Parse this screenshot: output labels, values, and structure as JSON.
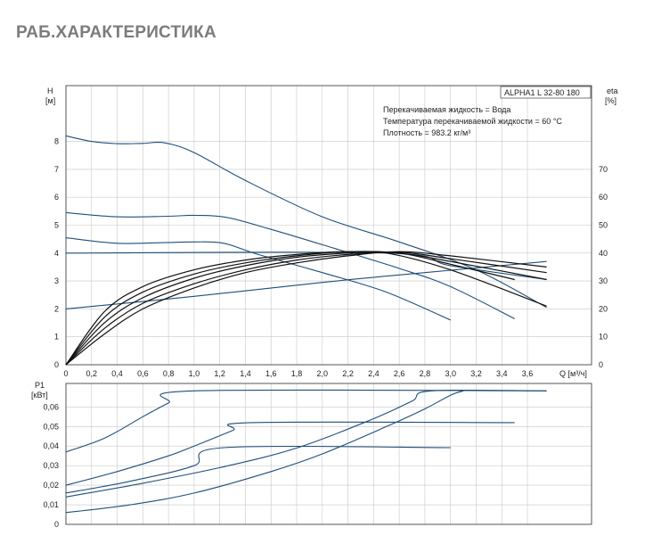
{
  "page": {
    "title": "РАБ.ХАРАКТЕРИСТИКА"
  },
  "colors": {
    "curve": "#1f4e7a",
    "eta": "#111111",
    "grid": "#c8c8c8",
    "frame": "#555555"
  },
  "info": {
    "model": "ALPHA1 L 32-80 180",
    "lines": [
      "Перекачиваемая жидкость = Вода",
      "Температура перекачиваемой жидкости = 60 °C",
      "Плотность = 983.2 кг/м³"
    ]
  },
  "chart_data": [
    {
      "type": "line",
      "xlabel": "Q [м³/ч]",
      "ylabel": "H [м]",
      "ylabel_right": "eta [%]",
      "xlim": [
        0,
        4.1
      ],
      "ylim": [
        0,
        10
      ],
      "ylim_right": [
        0,
        100
      ],
      "grid": true,
      "x_ticks": [
        "0",
        "0,2",
        "0,4",
        "0,6",
        "0,8",
        "1,0",
        "1,2",
        "1,4",
        "1,6",
        "1,8",
        "2,0",
        "2,2",
        "2,4",
        "2,6",
        "2,8",
        "3,0",
        "3,2",
        "3,4",
        "3,6"
      ],
      "y_ticks": [
        "0",
        "1",
        "2",
        "3",
        "4",
        "5",
        "6",
        "7",
        "8"
      ],
      "y_ticks_right": [
        "0",
        "10",
        "20",
        "30",
        "40",
        "50",
        "60",
        "70"
      ],
      "series": [
        {
          "role": "head",
          "points": [
            [
              0,
              8.2
            ],
            [
              0.2,
              8.0
            ],
            [
              0.4,
              7.92
            ],
            [
              0.6,
              7.93
            ],
            [
              0.77,
              7.95
            ],
            [
              1.0,
              7.6
            ],
            [
              1.4,
              6.6
            ],
            [
              2.0,
              5.3
            ],
            [
              2.6,
              4.4
            ],
            [
              3.2,
              3.4
            ],
            [
              3.75,
              2.05
            ]
          ]
        },
        {
          "role": "head",
          "points": [
            [
              0,
              5.45
            ],
            [
              0.4,
              5.3
            ],
            [
              0.8,
              5.32
            ],
            [
              1.0,
              5.35
            ],
            [
              1.25,
              5.28
            ],
            [
              1.6,
              4.85
            ],
            [
              2.0,
              4.3
            ],
            [
              2.6,
              3.45
            ],
            [
              3.0,
              2.8
            ],
            [
              3.5,
              1.65
            ]
          ]
        },
        {
          "role": "head",
          "points": [
            [
              0,
              4.55
            ],
            [
              0.4,
              4.35
            ],
            [
              0.8,
              4.38
            ],
            [
              1.0,
              4.4
            ],
            [
              1.23,
              4.35
            ],
            [
              1.5,
              3.95
            ],
            [
              2.0,
              3.3
            ],
            [
              2.5,
              2.6
            ],
            [
              3.0,
              1.6
            ]
          ]
        },
        {
          "role": "head",
          "points": [
            [
              0,
              4.0
            ],
            [
              2.5,
              4.0
            ],
            [
              3.0,
              3.55
            ],
            [
              3.75,
              3.05
            ]
          ]
        },
        {
          "role": "head",
          "points": [
            [
              0,
              2.0
            ],
            [
              1.0,
              2.45
            ],
            [
              2.0,
              2.95
            ],
            [
              2.8,
              3.3
            ],
            [
              3.75,
              3.7
            ]
          ]
        },
        {
          "role": "eta",
          "points": [
            [
              0,
              0
            ],
            [
              0.3,
              19
            ],
            [
              0.6,
              28
            ],
            [
              1.0,
              34
            ],
            [
              1.4,
              37.5
            ],
            [
              1.8,
              39.5
            ],
            [
              2.2,
              40.5
            ],
            [
              2.6,
              40
            ],
            [
              3.0,
              37
            ],
            [
              3.75,
              30.5
            ]
          ]
        },
        {
          "role": "eta",
          "points": [
            [
              0,
              0
            ],
            [
              0.3,
              17
            ],
            [
              0.6,
              26
            ],
            [
              1.0,
              32.5
            ],
            [
              1.4,
              36.5
            ],
            [
              1.8,
              39
            ],
            [
              2.2,
              40.5
            ],
            [
              2.6,
              40
            ],
            [
              3.0,
              36
            ],
            [
              3.5,
              30.5
            ]
          ]
        },
        {
          "role": "eta",
          "points": [
            [
              0,
              0
            ],
            [
              0.3,
              15
            ],
            [
              0.6,
              24
            ],
            [
              1.0,
              31
            ],
            [
              1.4,
              35.5
            ],
            [
              1.8,
              38.5
            ],
            [
              2.2,
              40
            ],
            [
              2.5,
              40
            ],
            [
              3.0,
              34
            ],
            [
              3.75,
              21
            ]
          ]
        },
        {
          "role": "eta",
          "points": [
            [
              0,
              0
            ],
            [
              0.3,
              13
            ],
            [
              0.6,
              22
            ],
            [
              1.0,
              29
            ],
            [
              1.4,
              34
            ],
            [
              1.8,
              37.5
            ],
            [
              2.2,
              39.5
            ],
            [
              2.6,
              40.3
            ],
            [
              3.0,
              38
            ],
            [
              3.75,
              33
            ]
          ]
        },
        {
          "role": "eta",
          "points": [
            [
              0,
              0
            ],
            [
              0.3,
              11
            ],
            [
              0.6,
              20
            ],
            [
              1.0,
              27.5
            ],
            [
              1.4,
              33
            ],
            [
              1.8,
              36.5
            ],
            [
              2.2,
              39
            ],
            [
              2.6,
              40.5
            ],
            [
              3.0,
              39
            ],
            [
              3.75,
              35
            ]
          ]
        }
      ]
    },
    {
      "type": "line",
      "xlabel": "",
      "ylabel": "P1 [кВт]",
      "xlim": [
        0,
        4.1
      ],
      "ylim": [
        0,
        0.072
      ],
      "grid": true,
      "y_ticks": [
        "0",
        "0,01",
        "0,02",
        "0,03",
        "0,04",
        "0,05",
        "0,06"
      ],
      "series": [
        {
          "role": "power",
          "points": [
            [
              0,
              0.037
            ],
            [
              0.3,
              0.044
            ],
            [
              0.6,
              0.055
            ],
            [
              0.8,
              0.062
            ],
            [
              1.0,
              0.0682
            ],
            [
              3.75,
              0.0682
            ]
          ]
        },
        {
          "role": "power",
          "points": [
            [
              0,
              0.02
            ],
            [
              0.4,
              0.027
            ],
            [
              0.8,
              0.035
            ],
            [
              1.0,
              0.04
            ],
            [
              1.3,
              0.048
            ],
            [
              1.45,
              0.052
            ],
            [
              3.5,
              0.052
            ]
          ]
        },
        {
          "role": "power",
          "points": [
            [
              0,
              0.016
            ],
            [
              0.5,
              0.022
            ],
            [
              1.0,
              0.03
            ],
            [
              1.23,
              0.0392
            ],
            [
              3.0,
              0.0392
            ]
          ]
        },
        {
          "role": "power",
          "points": [
            [
              0,
              0.014
            ],
            [
              0.6,
              0.021
            ],
            [
              1.2,
              0.029
            ],
            [
              1.8,
              0.039
            ],
            [
              2.4,
              0.054
            ],
            [
              2.7,
              0.063
            ],
            [
              2.85,
              0.0682
            ],
            [
              3.75,
              0.0682
            ]
          ]
        },
        {
          "role": "power",
          "points": [
            [
              0,
              0.006
            ],
            [
              0.5,
              0.01
            ],
            [
              1.0,
              0.016
            ],
            [
              1.6,
              0.027
            ],
            [
              2.0,
              0.036
            ],
            [
              2.5,
              0.05
            ],
            [
              2.8,
              0.059
            ],
            [
              3.0,
              0.066
            ],
            [
              3.1,
              0.0682
            ]
          ]
        }
      ]
    }
  ]
}
